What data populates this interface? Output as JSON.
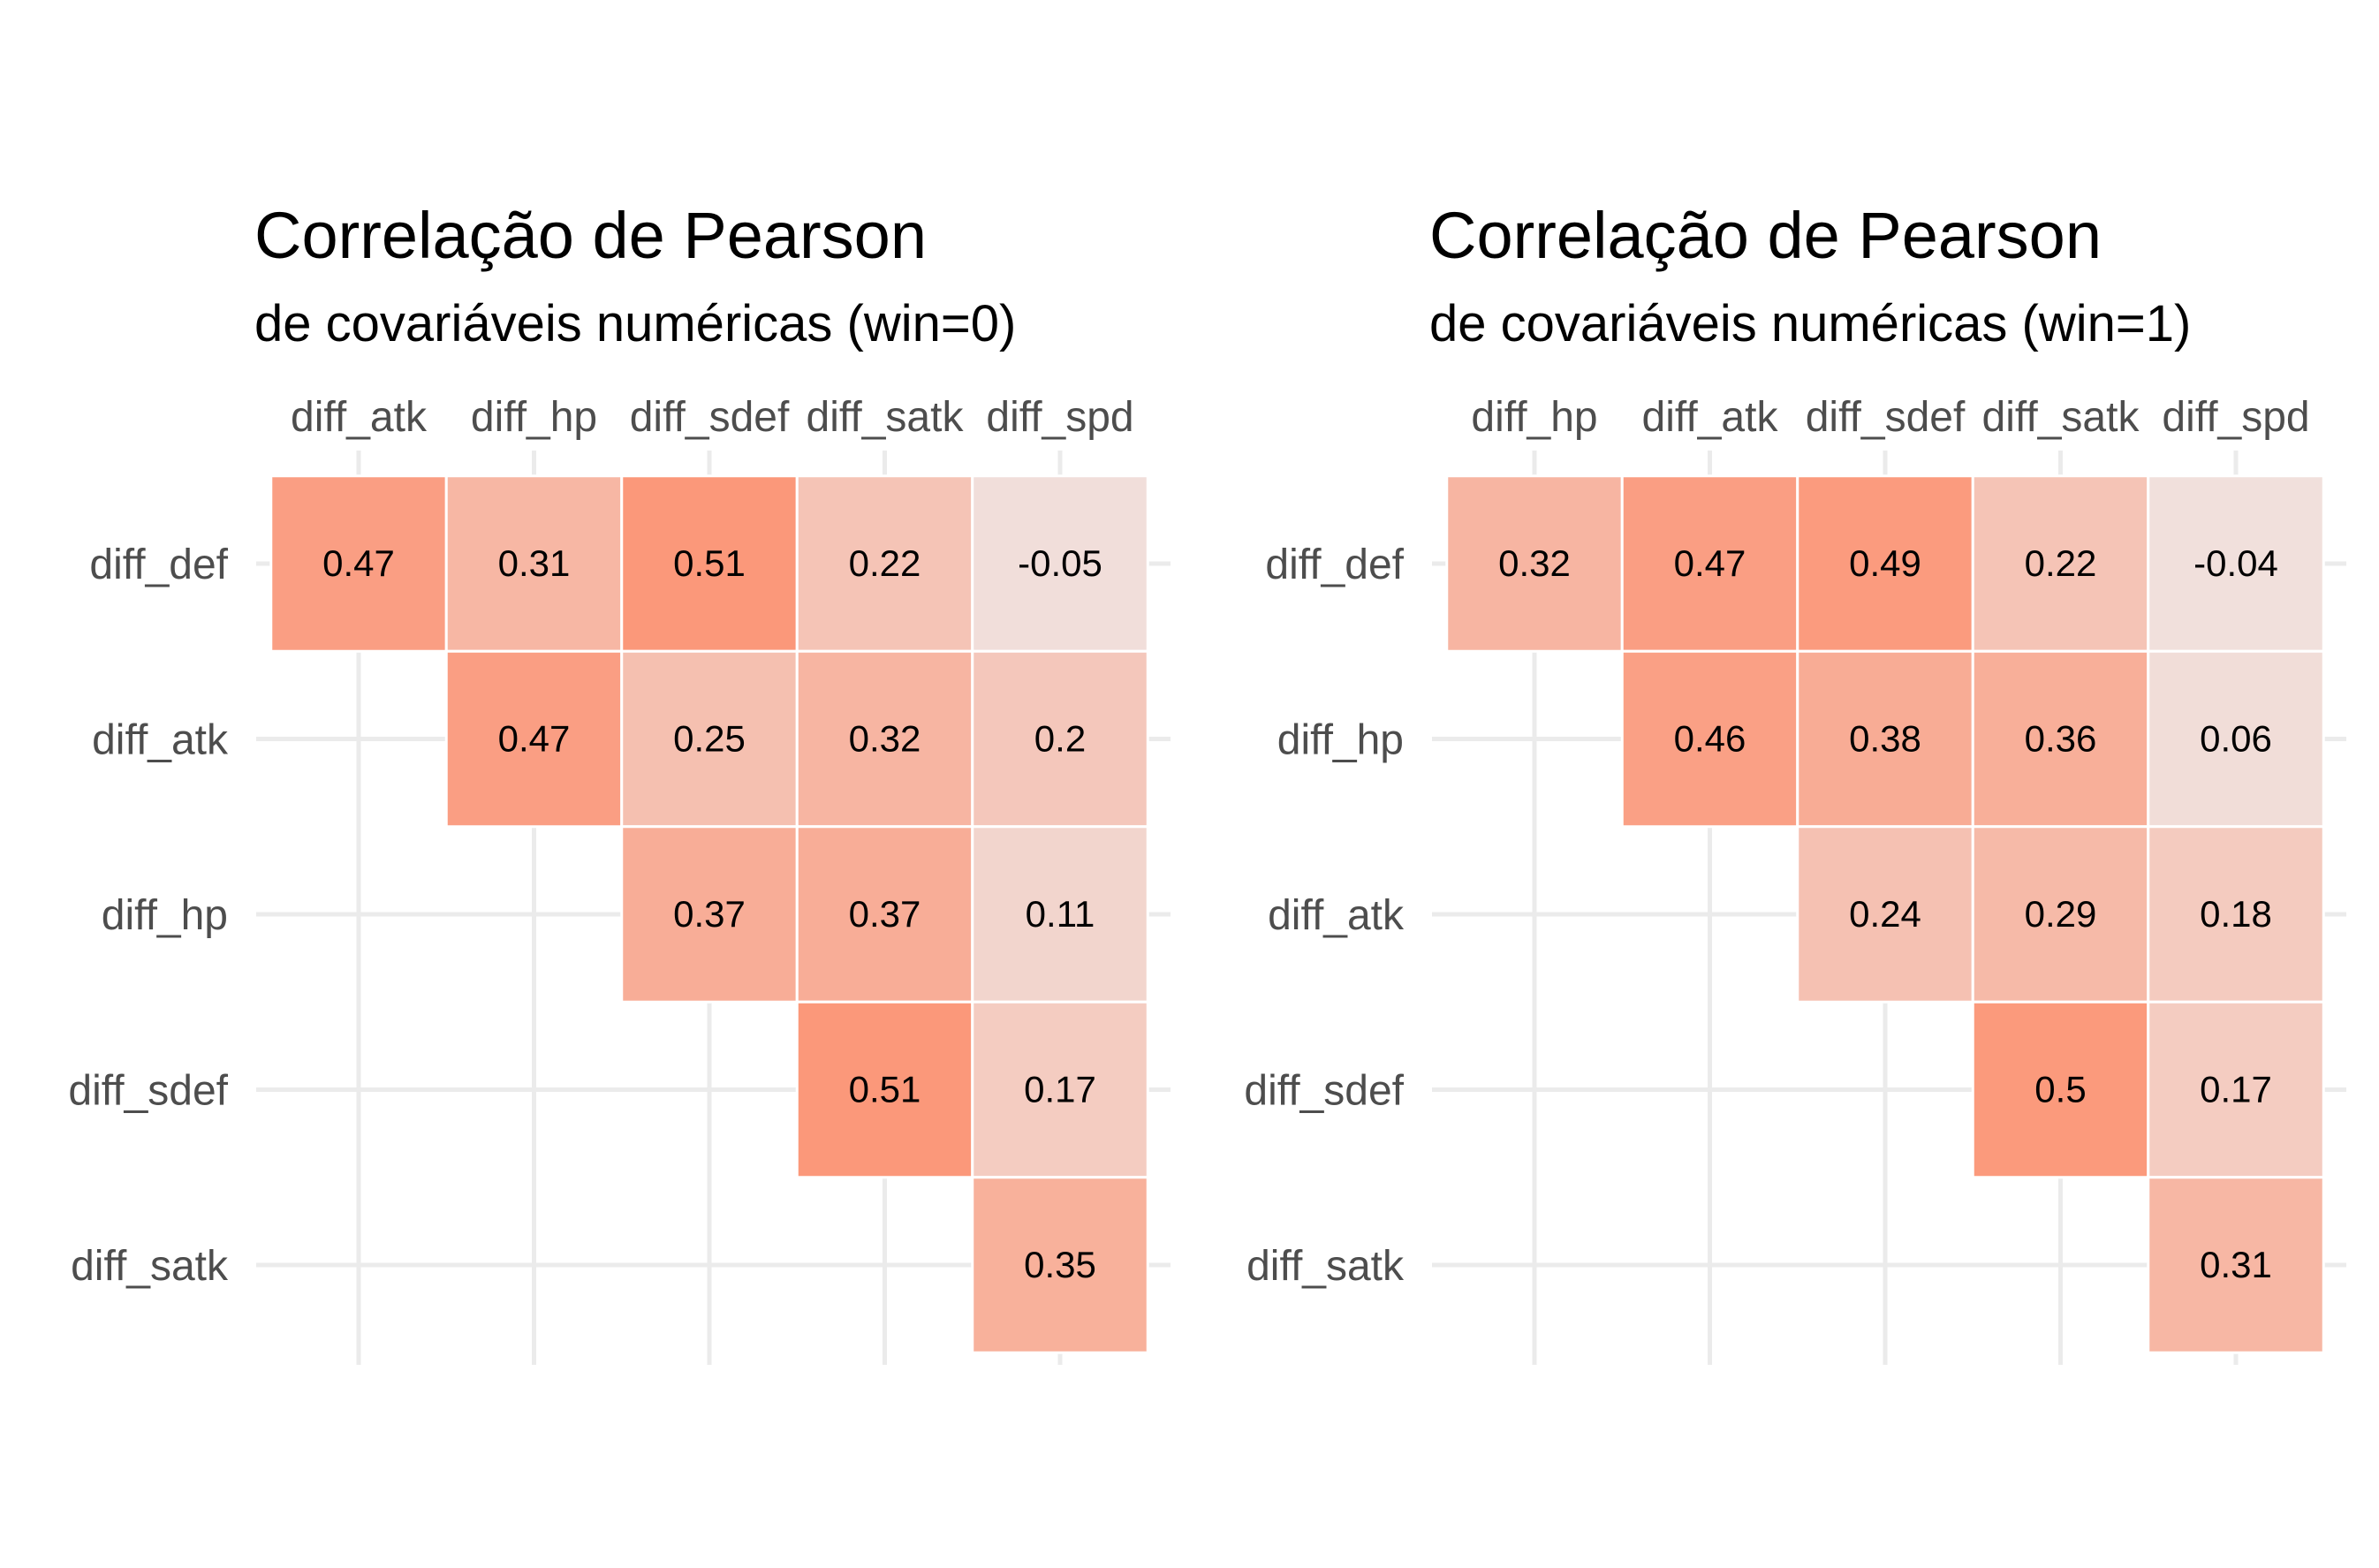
{
  "chart_data": [
    {
      "type": "heatmap",
      "title": "Correlação de Pearson",
      "subtitle": "de covariáveis numéricas (win=0)",
      "x_categories": [
        "diff_atk",
        "diff_hp",
        "diff_sdef",
        "diff_satk",
        "diff_spd"
      ],
      "y_categories": [
        "diff_def",
        "diff_atk",
        "diff_hp",
        "diff_sdef",
        "diff_satk"
      ],
      "cells": [
        {
          "row": "diff_def",
          "col": "diff_atk",
          "value": 0.47,
          "label": "0.47"
        },
        {
          "row": "diff_def",
          "col": "diff_hp",
          "value": 0.31,
          "label": "0.31"
        },
        {
          "row": "diff_def",
          "col": "diff_sdef",
          "value": 0.51,
          "label": "0.51"
        },
        {
          "row": "diff_def",
          "col": "diff_satk",
          "value": 0.22,
          "label": "0.22"
        },
        {
          "row": "diff_def",
          "col": "diff_spd",
          "value": -0.05,
          "label": "-0.05"
        },
        {
          "row": "diff_atk",
          "col": "diff_hp",
          "value": 0.47,
          "label": "0.47"
        },
        {
          "row": "diff_atk",
          "col": "diff_sdef",
          "value": 0.25,
          "label": "0.25"
        },
        {
          "row": "diff_atk",
          "col": "diff_satk",
          "value": 0.32,
          "label": "0.32"
        },
        {
          "row": "diff_atk",
          "col": "diff_spd",
          "value": 0.2,
          "label": "0.2"
        },
        {
          "row": "diff_hp",
          "col": "diff_sdef",
          "value": 0.37,
          "label": "0.37"
        },
        {
          "row": "diff_hp",
          "col": "diff_satk",
          "value": 0.37,
          "label": "0.37"
        },
        {
          "row": "diff_hp",
          "col": "diff_spd",
          "value": 0.11,
          "label": "0.11"
        },
        {
          "row": "diff_sdef",
          "col": "diff_satk",
          "value": 0.51,
          "label": "0.51"
        },
        {
          "row": "diff_sdef",
          "col": "diff_spd",
          "value": 0.17,
          "label": "0.17"
        },
        {
          "row": "diff_satk",
          "col": "diff_spd",
          "value": 0.35,
          "label": "0.35"
        }
      ],
      "grid": true,
      "legend": "none"
    },
    {
      "type": "heatmap",
      "title": "Correlação de Pearson",
      "subtitle": "de covariáveis numéricas (win=1)",
      "x_categories": [
        "diff_hp",
        "diff_atk",
        "diff_sdef",
        "diff_satk",
        "diff_spd"
      ],
      "y_categories": [
        "diff_def",
        "diff_hp",
        "diff_atk",
        "diff_sdef",
        "diff_satk"
      ],
      "cells": [
        {
          "row": "diff_def",
          "col": "diff_hp",
          "value": 0.32,
          "label": "0.32"
        },
        {
          "row": "diff_def",
          "col": "diff_atk",
          "value": 0.47,
          "label": "0.47"
        },
        {
          "row": "diff_def",
          "col": "diff_sdef",
          "value": 0.49,
          "label": "0.49"
        },
        {
          "row": "diff_def",
          "col": "diff_satk",
          "value": 0.22,
          "label": "0.22"
        },
        {
          "row": "diff_def",
          "col": "diff_spd",
          "value": -0.04,
          "label": "-0.04"
        },
        {
          "row": "diff_hp",
          "col": "diff_atk",
          "value": 0.46,
          "label": "0.46"
        },
        {
          "row": "diff_hp",
          "col": "diff_sdef",
          "value": 0.38,
          "label": "0.38"
        },
        {
          "row": "diff_hp",
          "col": "diff_satk",
          "value": 0.36,
          "label": "0.36"
        },
        {
          "row": "diff_hp",
          "col": "diff_spd",
          "value": 0.06,
          "label": "0.06"
        },
        {
          "row": "diff_atk",
          "col": "diff_sdef",
          "value": 0.24,
          "label": "0.24"
        },
        {
          "row": "diff_atk",
          "col": "diff_satk",
          "value": 0.29,
          "label": "0.29"
        },
        {
          "row": "diff_atk",
          "col": "diff_spd",
          "value": 0.18,
          "label": "0.18"
        },
        {
          "row": "diff_sdef",
          "col": "diff_satk",
          "value": 0.5,
          "label": "0.5"
        },
        {
          "row": "diff_sdef",
          "col": "diff_spd",
          "value": 0.17,
          "label": "0.17"
        },
        {
          "row": "diff_satk",
          "col": "diff_spd",
          "value": 0.31,
          "label": "0.31"
        }
      ],
      "grid": true,
      "legend": "none"
    }
  ],
  "colors": {
    "neutral": "#f0e6e4",
    "high": "#fc9272",
    "grid": "#ebebeb",
    "axis_text": "#4d4d4d",
    "cell_text": "#000000",
    "cell_border": "#ffffff"
  }
}
